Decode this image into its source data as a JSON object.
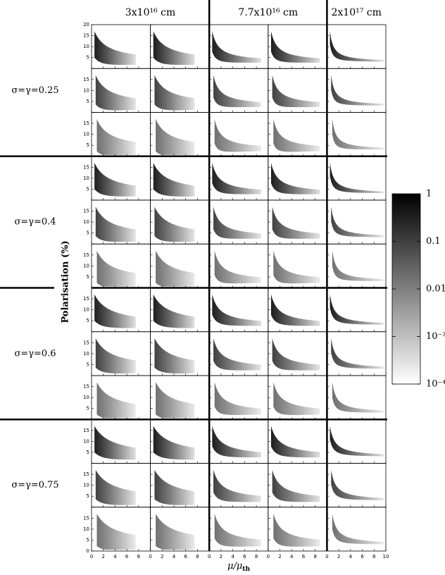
{
  "chart_data": {
    "type": "density-grid",
    "column_titles": [
      "3x10¹⁶ cm",
      "7.7x10¹⁶ cm",
      "2x10¹⁷ cm"
    ],
    "row_labels": [
      "σ=γ=0.25",
      "σ=γ=0.4",
      "σ=γ=0.6",
      "σ=γ=0.75"
    ],
    "ylabel": "Polarisation (%)",
    "xlabel": {
      "text": "μ/μ",
      "sub": "th"
    },
    "xlim": [
      0,
      10
    ],
    "xticks": [
      0,
      2,
      4,
      6,
      8,
      10
    ],
    "ylim": [
      0,
      20
    ],
    "yticks": [
      0,
      5,
      10,
      15,
      20
    ],
    "colorbar": {
      "lim": [
        0.0001,
        1
      ],
      "log": true,
      "ticks": [
        1,
        0.1,
        0.01,
        {
          "value": 0.001,
          "label": "10⁻³"
        },
        {
          "value": 0.0001,
          "label": "10⁻⁴"
        }
      ]
    }
  }
}
